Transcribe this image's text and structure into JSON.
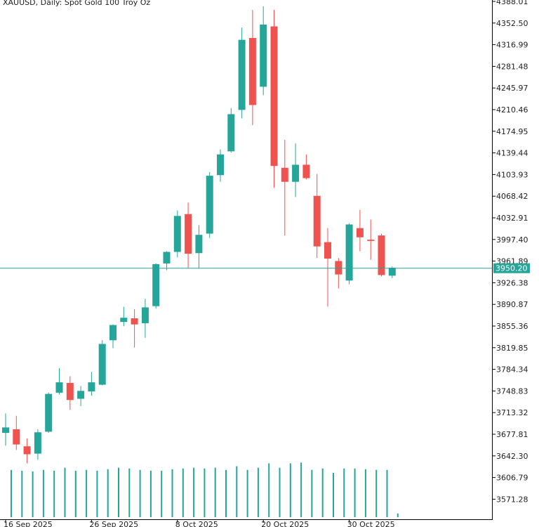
{
  "chart_data": {
    "type": "candlestick",
    "title": "XAUUSD, Daily:  Spot Gold 100 Troy Oz",
    "symbol": "XAUUSD",
    "timeframe": "Daily",
    "description": "Spot Gold 100 Troy Oz",
    "y_ticks": [
      "4388.01",
      "4352.50",
      "4316.99",
      "4281.48",
      "4245.97",
      "4210.46",
      "4174.95",
      "4139.44",
      "4103.93",
      "4068.42",
      "4032.91",
      "3997.40",
      "3961.89",
      "3926.38",
      "3890.87",
      "3855.36",
      "3819.85",
      "3784.34",
      "3748.83",
      "3713.32",
      "3677.81",
      "3642.30",
      "3606.79",
      "3571.28"
    ],
    "x_ticks": [
      {
        "label": "16 Sep 2025",
        "index": 0
      },
      {
        "label": "26 Sep 2025",
        "index": 8
      },
      {
        "label": "8 Oct 2025",
        "index": 16
      },
      {
        "label": "20 Oct 2025",
        "index": 24
      },
      {
        "label": "30 Oct 2025",
        "index": 32
      }
    ],
    "current_price": "3950.20",
    "colors": {
      "up": "#26a69a",
      "down": "#ef5350",
      "grid": "#000000",
      "price_line": "#26a69a"
    },
    "candles": [
      {
        "o": 3680,
        "h": 3712,
        "l": 3659,
        "c": 3689
      },
      {
        "o": 3686,
        "h": 3708,
        "l": 3652,
        "c": 3661
      },
      {
        "o": 3658,
        "h": 3671,
        "l": 3630,
        "c": 3645
      },
      {
        "o": 3646,
        "h": 3686,
        "l": 3636,
        "c": 3681
      },
      {
        "o": 3682,
        "h": 3746,
        "l": 3680,
        "c": 3744
      },
      {
        "o": 3746,
        "h": 3786,
        "l": 3743,
        "c": 3763
      },
      {
        "o": 3762,
        "h": 3773,
        "l": 3718,
        "c": 3734
      },
      {
        "o": 3736,
        "h": 3757,
        "l": 3724,
        "c": 3749
      },
      {
        "o": 3748,
        "h": 3780,
        "l": 3741,
        "c": 3763
      },
      {
        "o": 3759,
        "h": 3832,
        "l": 3758,
        "c": 3826
      },
      {
        "o": 3832,
        "h": 3858,
        "l": 3819,
        "c": 3857
      },
      {
        "o": 3862,
        "h": 3887,
        "l": 3855,
        "c": 3869
      },
      {
        "o": 3868,
        "h": 3883,
        "l": 3820,
        "c": 3858
      },
      {
        "o": 3860,
        "h": 3900,
        "l": 3836,
        "c": 3886
      },
      {
        "o": 3888,
        "h": 3958,
        "l": 3884,
        "c": 3957
      },
      {
        "o": 3958,
        "h": 3978,
        "l": 3947,
        "c": 3977
      },
      {
        "o": 3977,
        "h": 4045,
        "l": 3968,
        "c": 4036
      },
      {
        "o": 4039,
        "h": 4058,
        "l": 3950,
        "c": 3974
      },
      {
        "o": 3975,
        "h": 4021,
        "l": 3950,
        "c": 4005
      },
      {
        "o": 4007,
        "h": 4108,
        "l": 4000,
        "c": 4102
      },
      {
        "o": 4103,
        "h": 4145,
        "l": 4092,
        "c": 4137
      },
      {
        "o": 4142,
        "h": 4213,
        "l": 4140,
        "c": 4203
      },
      {
        "o": 4210,
        "h": 4345,
        "l": 4196,
        "c": 4325
      },
      {
        "o": 4328,
        "h": 4374,
        "l": 4185,
        "c": 4218
      },
      {
        "o": 4248,
        "h": 4380,
        "l": 4234,
        "c": 4350
      },
      {
        "o": 4347,
        "h": 4374,
        "l": 4082,
        "c": 4118
      },
      {
        "o": 4115,
        "h": 4161,
        "l": 4004,
        "c": 4092
      },
      {
        "o": 4092,
        "h": 4155,
        "l": 4067,
        "c": 4120
      },
      {
        "o": 4120,
        "h": 4137,
        "l": 4096,
        "c": 4098
      },
      {
        "o": 4069,
        "h": 4105,
        "l": 3967,
        "c": 3986
      },
      {
        "o": 3993,
        "h": 4016,
        "l": 3887,
        "c": 3966
      },
      {
        "o": 3962,
        "h": 3967,
        "l": 3917,
        "c": 3940
      },
      {
        "o": 3930,
        "h": 4024,
        "l": 3924,
        "c": 4022
      },
      {
        "o": 4016,
        "h": 4046,
        "l": 3978,
        "c": 4001
      },
      {
        "o": 3997,
        "h": 4030,
        "l": 3964,
        "c": 3995
      },
      {
        "o": 4004,
        "h": 4007,
        "l": 3937,
        "c": 3939
      },
      {
        "o": 3938,
        "h": 3953,
        "l": 3934,
        "c": 3951
      }
    ],
    "volumes": [
      64,
      63,
      62,
      64,
      63,
      67,
      63,
      64,
      63,
      65,
      67,
      66,
      64,
      63,
      63,
      65,
      66,
      67,
      66,
      67,
      64,
      69,
      64,
      67,
      73,
      67,
      73,
      74,
      64,
      66,
      60,
      66,
      66,
      65,
      64,
      64,
      5
    ]
  }
}
